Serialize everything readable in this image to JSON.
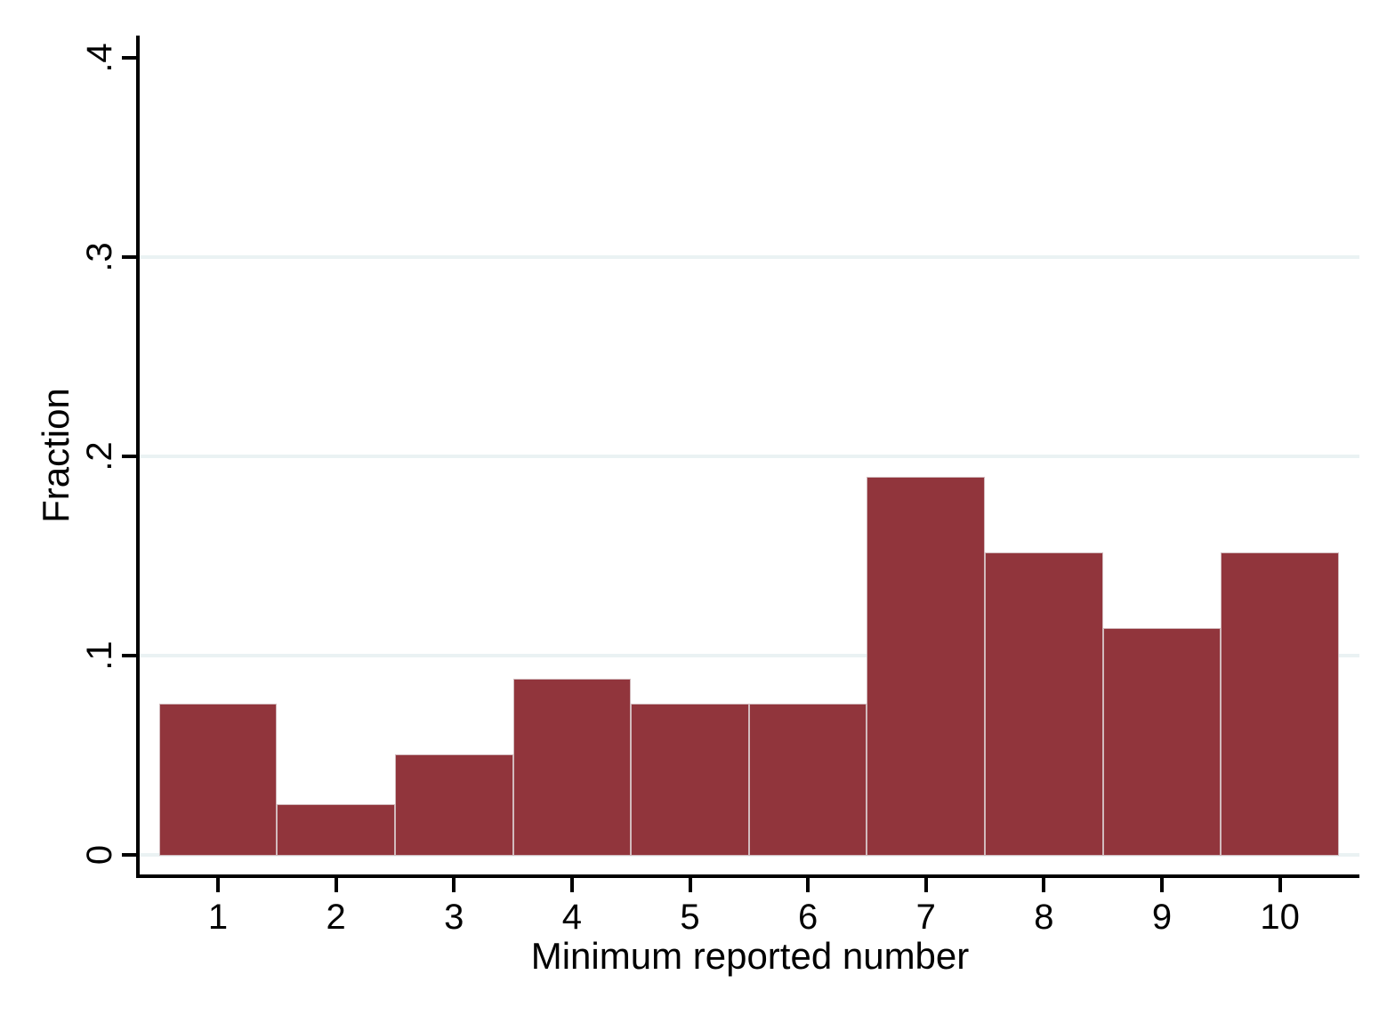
{
  "chart_data": {
    "type": "bar",
    "variant": "histogram",
    "title": "",
    "xlabel": "Minimum reported number",
    "ylabel": "Fraction",
    "categories": [
      "1",
      "2",
      "3",
      "4",
      "5",
      "6",
      "7",
      "8",
      "9",
      "10"
    ],
    "values": [
      0.0759,
      0.0253,
      0.0506,
      0.0886,
      0.0759,
      0.0759,
      0.1899,
      0.1519,
      0.1139,
      0.1519
    ],
    "ylim": [
      0,
      0.4
    ],
    "xlim": [
      0.5,
      10.5
    ],
    "yticks": [
      {
        "value": 0,
        "label": "0"
      },
      {
        "value": 0.1,
        "label": ".1"
      },
      {
        "value": 0.2,
        "label": ".2"
      },
      {
        "value": 0.3,
        "label": ".3"
      },
      {
        "value": 0.4,
        "label": ".4"
      }
    ],
    "gridline_values": [
      0,
      0.1,
      0.2,
      0.3
    ],
    "grid": "horizontal",
    "legend": "none",
    "colors": {
      "bar_fill": "#91353C",
      "bar_border": "#D2BABD",
      "gridline": "#EAF2F3",
      "axis": "#000000",
      "text": "#000000",
      "background": "#FFFFFF"
    }
  }
}
